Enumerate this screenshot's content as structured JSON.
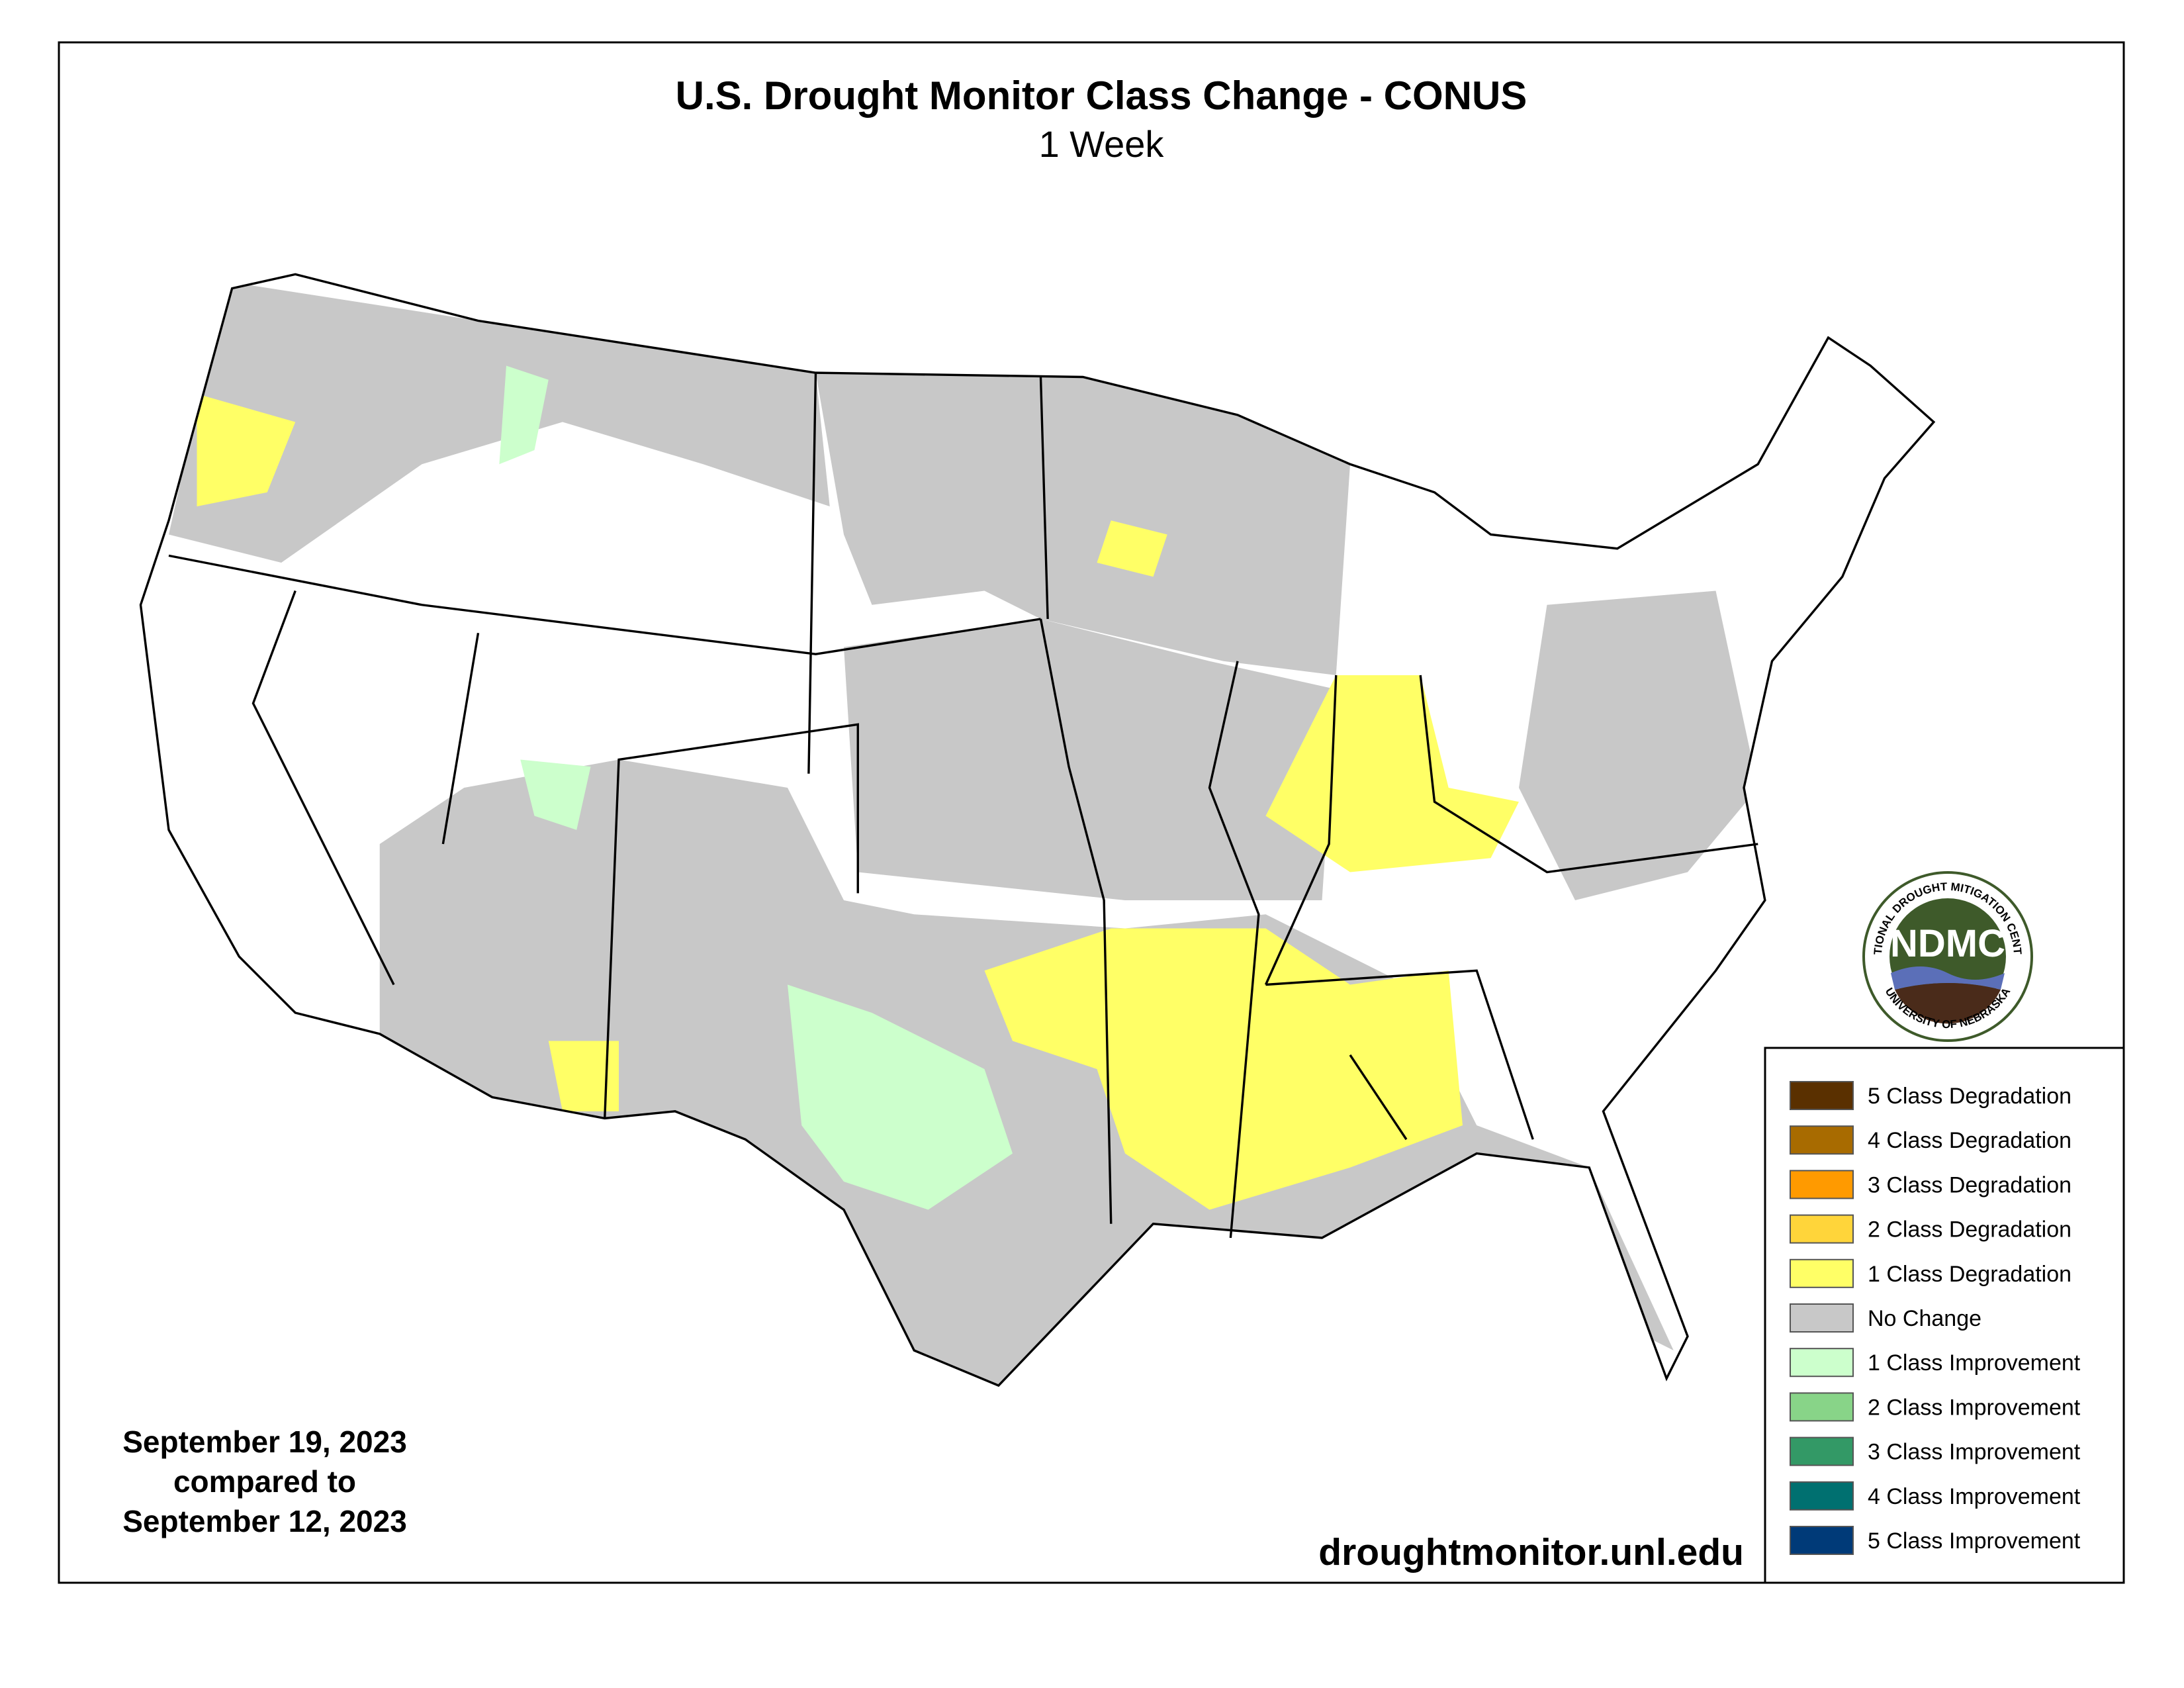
{
  "title": "U.S. Drought Monitor Class Change - CONUS",
  "subtitle": "1 Week",
  "legend": {
    "items": [
      {
        "label": "5 Class Degradation",
        "color": "#5a3000"
      },
      {
        "label": "4 Class Degradation",
        "color": "#a86b00"
      },
      {
        "label": "3 Class Degradation",
        "color": "#ff9a00"
      },
      {
        "label": "2 Class Degradation",
        "color": "#ffd53a"
      },
      {
        "label": "1 Class Degradation",
        "color": "#ffff66"
      },
      {
        "label": "No Change",
        "color": "#c8c8c8"
      },
      {
        "label": "1 Class Improvement",
        "color": "#ccffcc"
      },
      {
        "label": "2 Class Improvement",
        "color": "#88d488"
      },
      {
        "label": "3 Class Improvement",
        "color": "#339966"
      },
      {
        "label": "4 Class Improvement",
        "color": "#007070"
      },
      {
        "label": "5 Class Improvement",
        "color": "#003a78"
      }
    ]
  },
  "date_note": [
    "September 19, 2023",
    "compared to",
    "September 12, 2023"
  ],
  "source": "droughtmonitor.unl.edu",
  "logo": {
    "abbr": "NDMC",
    "ring_top": "NATIONAL DROUGHT MITIGATION CENTER",
    "ring_bottom": "UNIVERSITY OF NEBRASKA"
  }
}
